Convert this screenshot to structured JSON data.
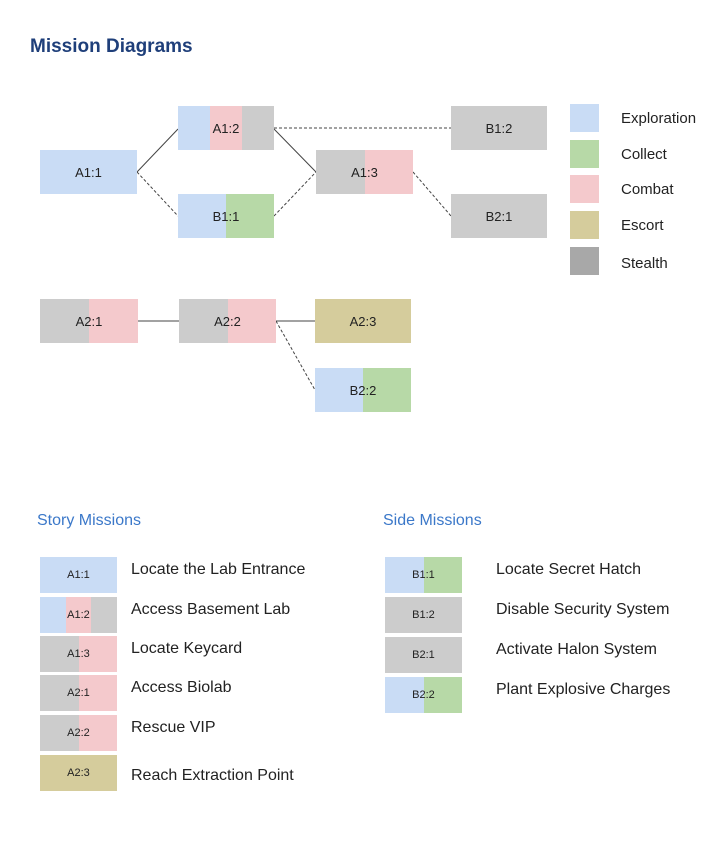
{
  "title": "Mission Diagrams",
  "colors": {
    "exploration": "#c9dcf5",
    "collect": "#b7d9a7",
    "combat": "#f4c9cc",
    "escort": "#d5cc9c",
    "stealth": "#a8a8a8",
    "stealth_light": "#cccccc",
    "title": "#1f3f7a",
    "section": "#3b78c9"
  },
  "legend": [
    {
      "label": "Exploration",
      "icon": "exploration-swatch",
      "color": "#c9dcf5"
    },
    {
      "label": "Collect",
      "icon": "collect-swatch",
      "color": "#b7d9a7"
    },
    {
      "label": "Combat",
      "icon": "combat-swatch",
      "color": "#f4c9cc"
    },
    {
      "label": "Escort",
      "icon": "escort-swatch",
      "color": "#d5cc9c"
    },
    {
      "label": "Stealth",
      "icon": "stealth-swatch",
      "color": "#a8a8a8"
    }
  ],
  "nodes": {
    "a1_1": {
      "label": "A1:1",
      "types": [
        "exploration"
      ]
    },
    "a1_2": {
      "label": "A1:2",
      "types": [
        "exploration",
        "combat",
        "stealth"
      ]
    },
    "b1_1": {
      "label": "B1:1",
      "types": [
        "exploration",
        "collect"
      ]
    },
    "a1_3": {
      "label": "A1:3",
      "types": [
        "stealth",
        "combat"
      ]
    },
    "b1_2": {
      "label": "B1:2",
      "types": [
        "stealth"
      ]
    },
    "b2_1": {
      "label": "B2:1",
      "types": [
        "stealth"
      ]
    },
    "a2_1": {
      "label": "A2:1",
      "types": [
        "stealth",
        "combat"
      ]
    },
    "a2_2": {
      "label": "A2:2",
      "types": [
        "stealth",
        "combat"
      ]
    },
    "a2_3": {
      "label": "A2:3",
      "types": [
        "escort"
      ]
    },
    "b2_2": {
      "label": "B2:2",
      "types": [
        "exploration",
        "collect"
      ]
    }
  },
  "story": {
    "title": "Story Missions",
    "items": [
      {
        "code": "A1:1",
        "types": [
          "exploration"
        ],
        "name": "Locate the Lab Entrance"
      },
      {
        "code": "A1:2",
        "types": [
          "exploration",
          "combat",
          "stealth"
        ],
        "name": "Access Basement Lab"
      },
      {
        "code": "A1:3",
        "types": [
          "stealth",
          "combat"
        ],
        "name": "Locate Keycard"
      },
      {
        "code": "A2:1",
        "types": [
          "stealth",
          "combat"
        ],
        "name": "Access Biolab"
      },
      {
        "code": "A2:2",
        "types": [
          "stealth",
          "combat"
        ],
        "name": "Rescue VIP"
      },
      {
        "code": "A2:3",
        "types": [
          "escort"
        ],
        "name": "Reach Extraction Point"
      }
    ]
  },
  "side": {
    "title": "Side Missions",
    "items": [
      {
        "code": "B1:1",
        "types": [
          "exploration",
          "collect"
        ],
        "name": "Locate Secret Hatch"
      },
      {
        "code": "B1:2",
        "types": [
          "stealth"
        ],
        "name": "Disable Security System"
      },
      {
        "code": "B2:1",
        "types": [
          "stealth"
        ],
        "name": "Activate Halon System"
      },
      {
        "code": "B2:2",
        "types": [
          "exploration",
          "collect"
        ],
        "name": "Plant Explosive Charges"
      }
    ]
  }
}
